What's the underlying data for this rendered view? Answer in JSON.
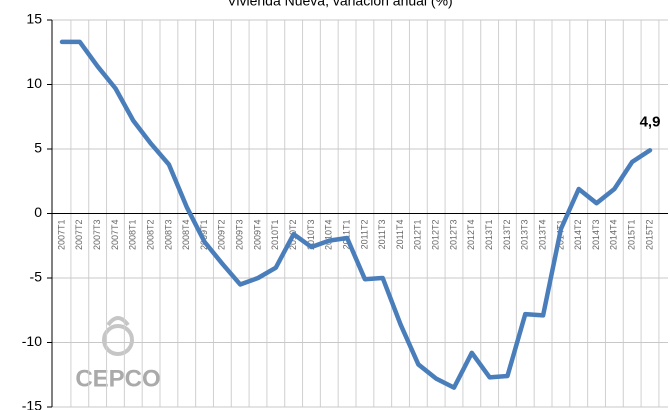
{
  "chart_data": {
    "type": "line",
    "title": "Vivienda Nueva, variación anual (%)",
    "watermark": "CEPCO",
    "categories": [
      "2007T1",
      "2007T2",
      "2007T3",
      "2007T4",
      "2008T1",
      "2008T2",
      "2008T3",
      "2008T4",
      "2009T1",
      "2009T2",
      "2009T3",
      "2009T4",
      "2010T1",
      "2010T2",
      "2010T3",
      "2010T4",
      "2011T1",
      "2011T2",
      "2011T3",
      "2011T4",
      "2012T1",
      "2012T2",
      "2012T3",
      "2012T4",
      "2013T1",
      "2013T2",
      "2013T3",
      "2013T4",
      "2014T1",
      "2014T2",
      "2014T3",
      "2014T4",
      "2015T1",
      "2015T2"
    ],
    "series": [
      {
        "color": "#4a7ebb",
        "values": [
          13.3,
          13.3,
          11.4,
          9.7,
          7.2,
          5.4,
          3.8,
          0.5,
          -2.2,
          -3.9,
          -5.5,
          -5.0,
          -4.2,
          -1.6,
          -2.6,
          -2.1,
          -1.9,
          -5.1,
          -5.0,
          -8.6,
          -11.7,
          -12.8,
          -13.5,
          -10.8,
          -12.7,
          -12.6,
          -7.8,
          -7.9,
          -1.2,
          1.9,
          0.8,
          1.9,
          4.0,
          4.9
        ],
        "value_labels": [
          null,
          null,
          null,
          null,
          null,
          null,
          null,
          null,
          null,
          null,
          null,
          null,
          null,
          null,
          null,
          null,
          null,
          null,
          null,
          null,
          null,
          null,
          null,
          null,
          null,
          null,
          null,
          null,
          null,
          null,
          null,
          null,
          null,
          "4,9"
        ]
      }
    ],
    "ylim": [
      -15,
      15
    ],
    "yticks": [
      -15,
      -10,
      -5,
      0,
      5,
      10,
      15
    ],
    "grid": true
  }
}
